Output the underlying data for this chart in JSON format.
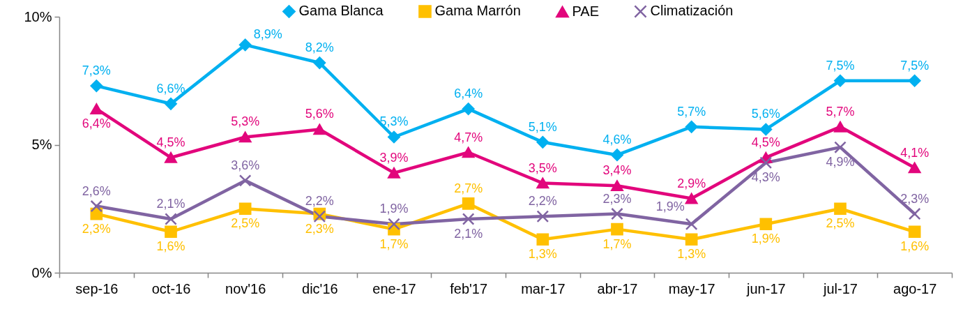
{
  "chart_data": {
    "type": "line",
    "categories": [
      "sep-16",
      "oct-16",
      "nov'16",
      "dic'16",
      "ene-17",
      "feb'17",
      "mar-17",
      "abr-17",
      "may-17",
      "jun-17",
      "jul-17",
      "ago-17"
    ],
    "ylim": [
      0,
      10
    ],
    "yticks": [
      {
        "value": 0,
        "label": "0%"
      },
      {
        "value": 5,
        "label": "5%"
      },
      {
        "value": 10,
        "label": "10%"
      }
    ],
    "legend": "top",
    "series": [
      {
        "name": "Gama Blanca",
        "color": "#00b0f0",
        "marker": "diamond",
        "values": [
          7.3,
          6.6,
          8.9,
          8.2,
          5.3,
          6.4,
          5.1,
          4.6,
          5.7,
          5.6,
          7.5,
          7.5
        ],
        "value_labels": [
          "7,3%",
          "6,6%",
          "8,9%",
          "8,2%",
          "5,3%",
          "6,4%",
          "5,1%",
          "4,6%",
          "5,7%",
          "5,6%",
          "7,5%",
          "7,5%"
        ]
      },
      {
        "name": "Gama Marrón",
        "color": "#ffc000",
        "marker": "square",
        "values": [
          2.3,
          1.6,
          2.5,
          2.3,
          1.7,
          2.7,
          1.3,
          1.7,
          1.3,
          1.9,
          2.5,
          1.6
        ],
        "value_labels": [
          "2,3%",
          "1,6%",
          "2,5%",
          "2,3%",
          "1,7%",
          "2,7%",
          "1,3%",
          "1,7%",
          "1,3%",
          "1,9%",
          "2,5%",
          "1,6%"
        ]
      },
      {
        "name": "PAE",
        "color": "#e2067c",
        "marker": "triangle",
        "values": [
          6.4,
          4.5,
          5.3,
          5.6,
          3.9,
          4.7,
          3.5,
          3.4,
          2.9,
          4.5,
          5.7,
          4.1
        ],
        "value_labels": [
          "6,4%",
          "4,5%",
          "5,3%",
          "5,6%",
          "3,9%",
          "4,7%",
          "3,5%",
          "3,4%",
          "2,9%",
          "4,5%",
          "5,7%",
          "4,1%"
        ]
      },
      {
        "name": "Climatización",
        "color": "#8064a2",
        "marker": "cross",
        "values": [
          2.6,
          2.1,
          3.6,
          2.2,
          1.9,
          2.1,
          2.2,
          2.3,
          1.9,
          4.3,
          4.9,
          2.3
        ],
        "value_labels": [
          "2,6%",
          "2,1%",
          "3,6%",
          "2,2%",
          "1,9%",
          "2,1%",
          "2,2%",
          "2,3%",
          "1,9%",
          "4,3%",
          "4,9%",
          "2,3%"
        ]
      }
    ]
  }
}
